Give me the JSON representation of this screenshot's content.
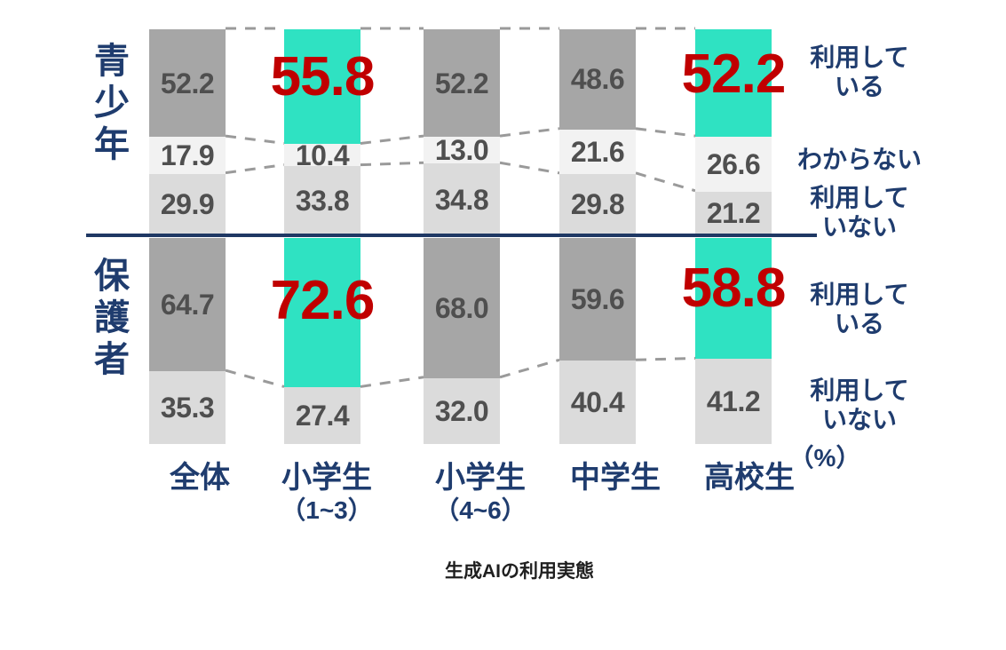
{
  "page": {
    "caption": "生成AIの利用実態"
  },
  "chart_data": {
    "type": "bar",
    "subtype": "stacked-percentage-columns-two-panels",
    "title": "生成AIの利用実態",
    "unit_label": "（%）",
    "ylim": [
      0,
      100
    ],
    "categories": [
      {
        "label": "全体",
        "sublabel": ""
      },
      {
        "label": "小学生",
        "sublabel": "（1~3）"
      },
      {
        "label": "小学生",
        "sublabel": "（4~6）"
      },
      {
        "label": "中学生",
        "sublabel": ""
      },
      {
        "label": "高校生",
        "sublabel": ""
      }
    ],
    "highlighted_columns": [
      1,
      4
    ],
    "panels": [
      {
        "name": "青少年",
        "series": [
          {
            "name": "利用している",
            "color_key": "using",
            "values": [
              52.2,
              55.8,
              52.2,
              48.6,
              52.2
            ]
          },
          {
            "name": "わからない",
            "color_key": "unknown",
            "values": [
              17.9,
              10.4,
              13.0,
              21.6,
              26.6
            ]
          },
          {
            "name": "利用していない",
            "color_key": "not_using",
            "values": [
              29.9,
              33.8,
              34.8,
              29.8,
              21.2
            ]
          }
        ],
        "side_labels": [
          [
            "利用して",
            "いる"
          ],
          [
            "わからない"
          ],
          [
            "利用して",
            "いない"
          ]
        ]
      },
      {
        "name": "保護者",
        "series": [
          {
            "name": "利用している",
            "color_key": "using",
            "values": [
              64.7,
              72.6,
              68.0,
              59.6,
              58.8
            ]
          },
          {
            "name": "利用していない",
            "color_key": "not_using",
            "values": [
              35.3,
              27.4,
              32.0,
              40.4,
              41.2
            ]
          }
        ],
        "side_labels": [
          [
            "利用して",
            "いる"
          ],
          [
            "利用して",
            "いない"
          ]
        ]
      }
    ],
    "colors": {
      "using": "#a6a6a6",
      "unknown": "#f2f2f2",
      "not_using": "#dbdbdb",
      "highlight": "#2fe2c2",
      "highlight_value": "#c00000",
      "value_text": "#4f4f4f",
      "axis_text": "#1f3c6e",
      "divider": "#1f3864",
      "connector": "#9a9a9a"
    }
  }
}
